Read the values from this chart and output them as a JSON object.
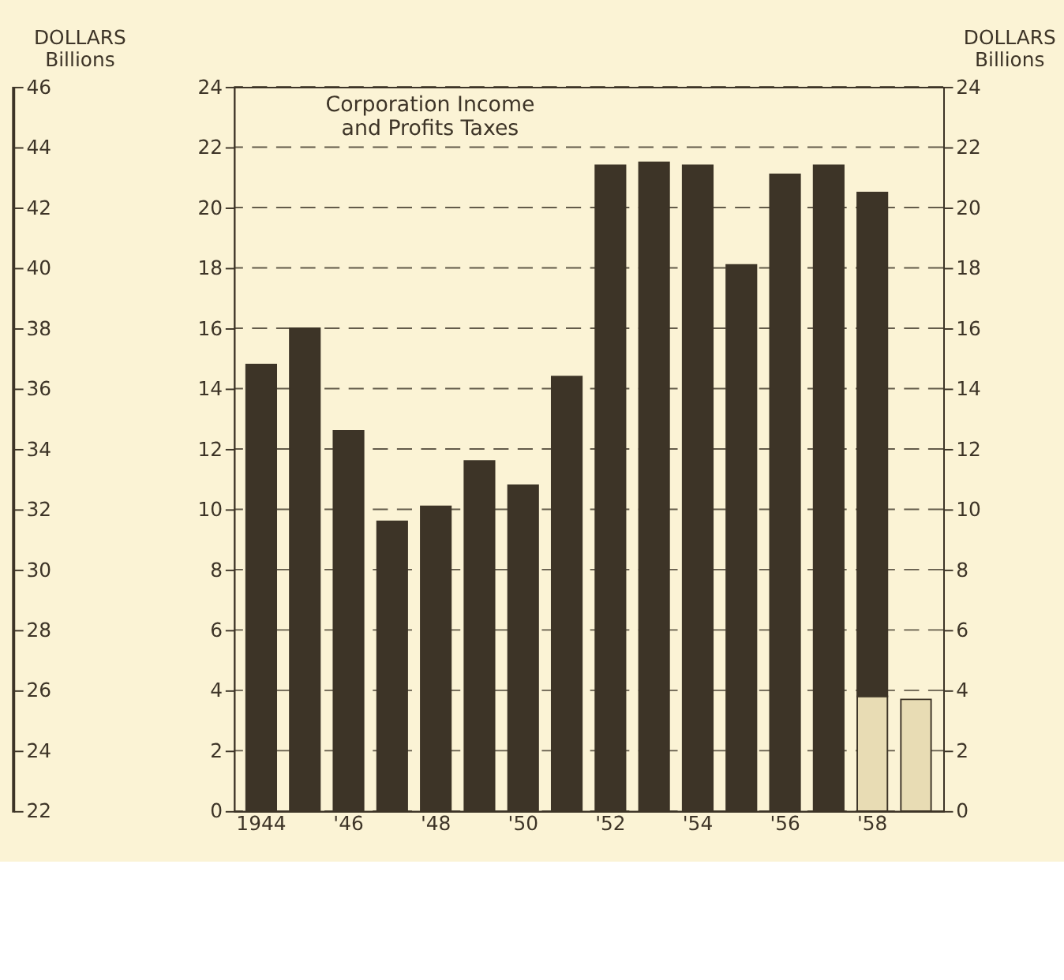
{
  "chart_data": {
    "type": "bar",
    "title": "Corporation Income\nand Profits Taxes",
    "categories": [
      "1944",
      null,
      "'46",
      null,
      "'48",
      null,
      "'50",
      null,
      "'52",
      null,
      "'54",
      null,
      "'56",
      null,
      "'58",
      null
    ],
    "stacked": true,
    "series": [
      {
        "color": "#e8dcb4",
        "values": [
          null,
          null,
          null,
          null,
          null,
          null,
          null,
          null,
          null,
          null,
          null,
          null,
          null,
          null,
          3.8,
          3.7
        ]
      },
      {
        "color": "#3d3427",
        "values": [
          14.8,
          16.0,
          12.6,
          9.6,
          10.1,
          11.6,
          10.8,
          14.4,
          21.4,
          21.5,
          21.4,
          18.1,
          21.1,
          21.4,
          16.7,
          null
        ]
      }
    ],
    "ylim": [
      0,
      24
    ],
    "yticks": [
      0,
      2,
      4,
      6,
      8,
      10,
      12,
      14,
      16,
      18,
      20,
      22,
      24
    ],
    "y2lim": [
      0,
      24
    ],
    "y2ticks": [
      0,
      2,
      4,
      6,
      8,
      10,
      12,
      14,
      16,
      18,
      20,
      22,
      24
    ],
    "y2label": "DOLLARS\nBillions",
    "y3lim": [
      22,
      46
    ],
    "y3ticks": [
      22,
      24,
      26,
      28,
      30,
      32,
      34,
      36,
      38,
      40,
      42,
      44,
      46
    ],
    "y3label": "DOLLARS\nBillions",
    "grid": "y",
    "legend": false
  }
}
